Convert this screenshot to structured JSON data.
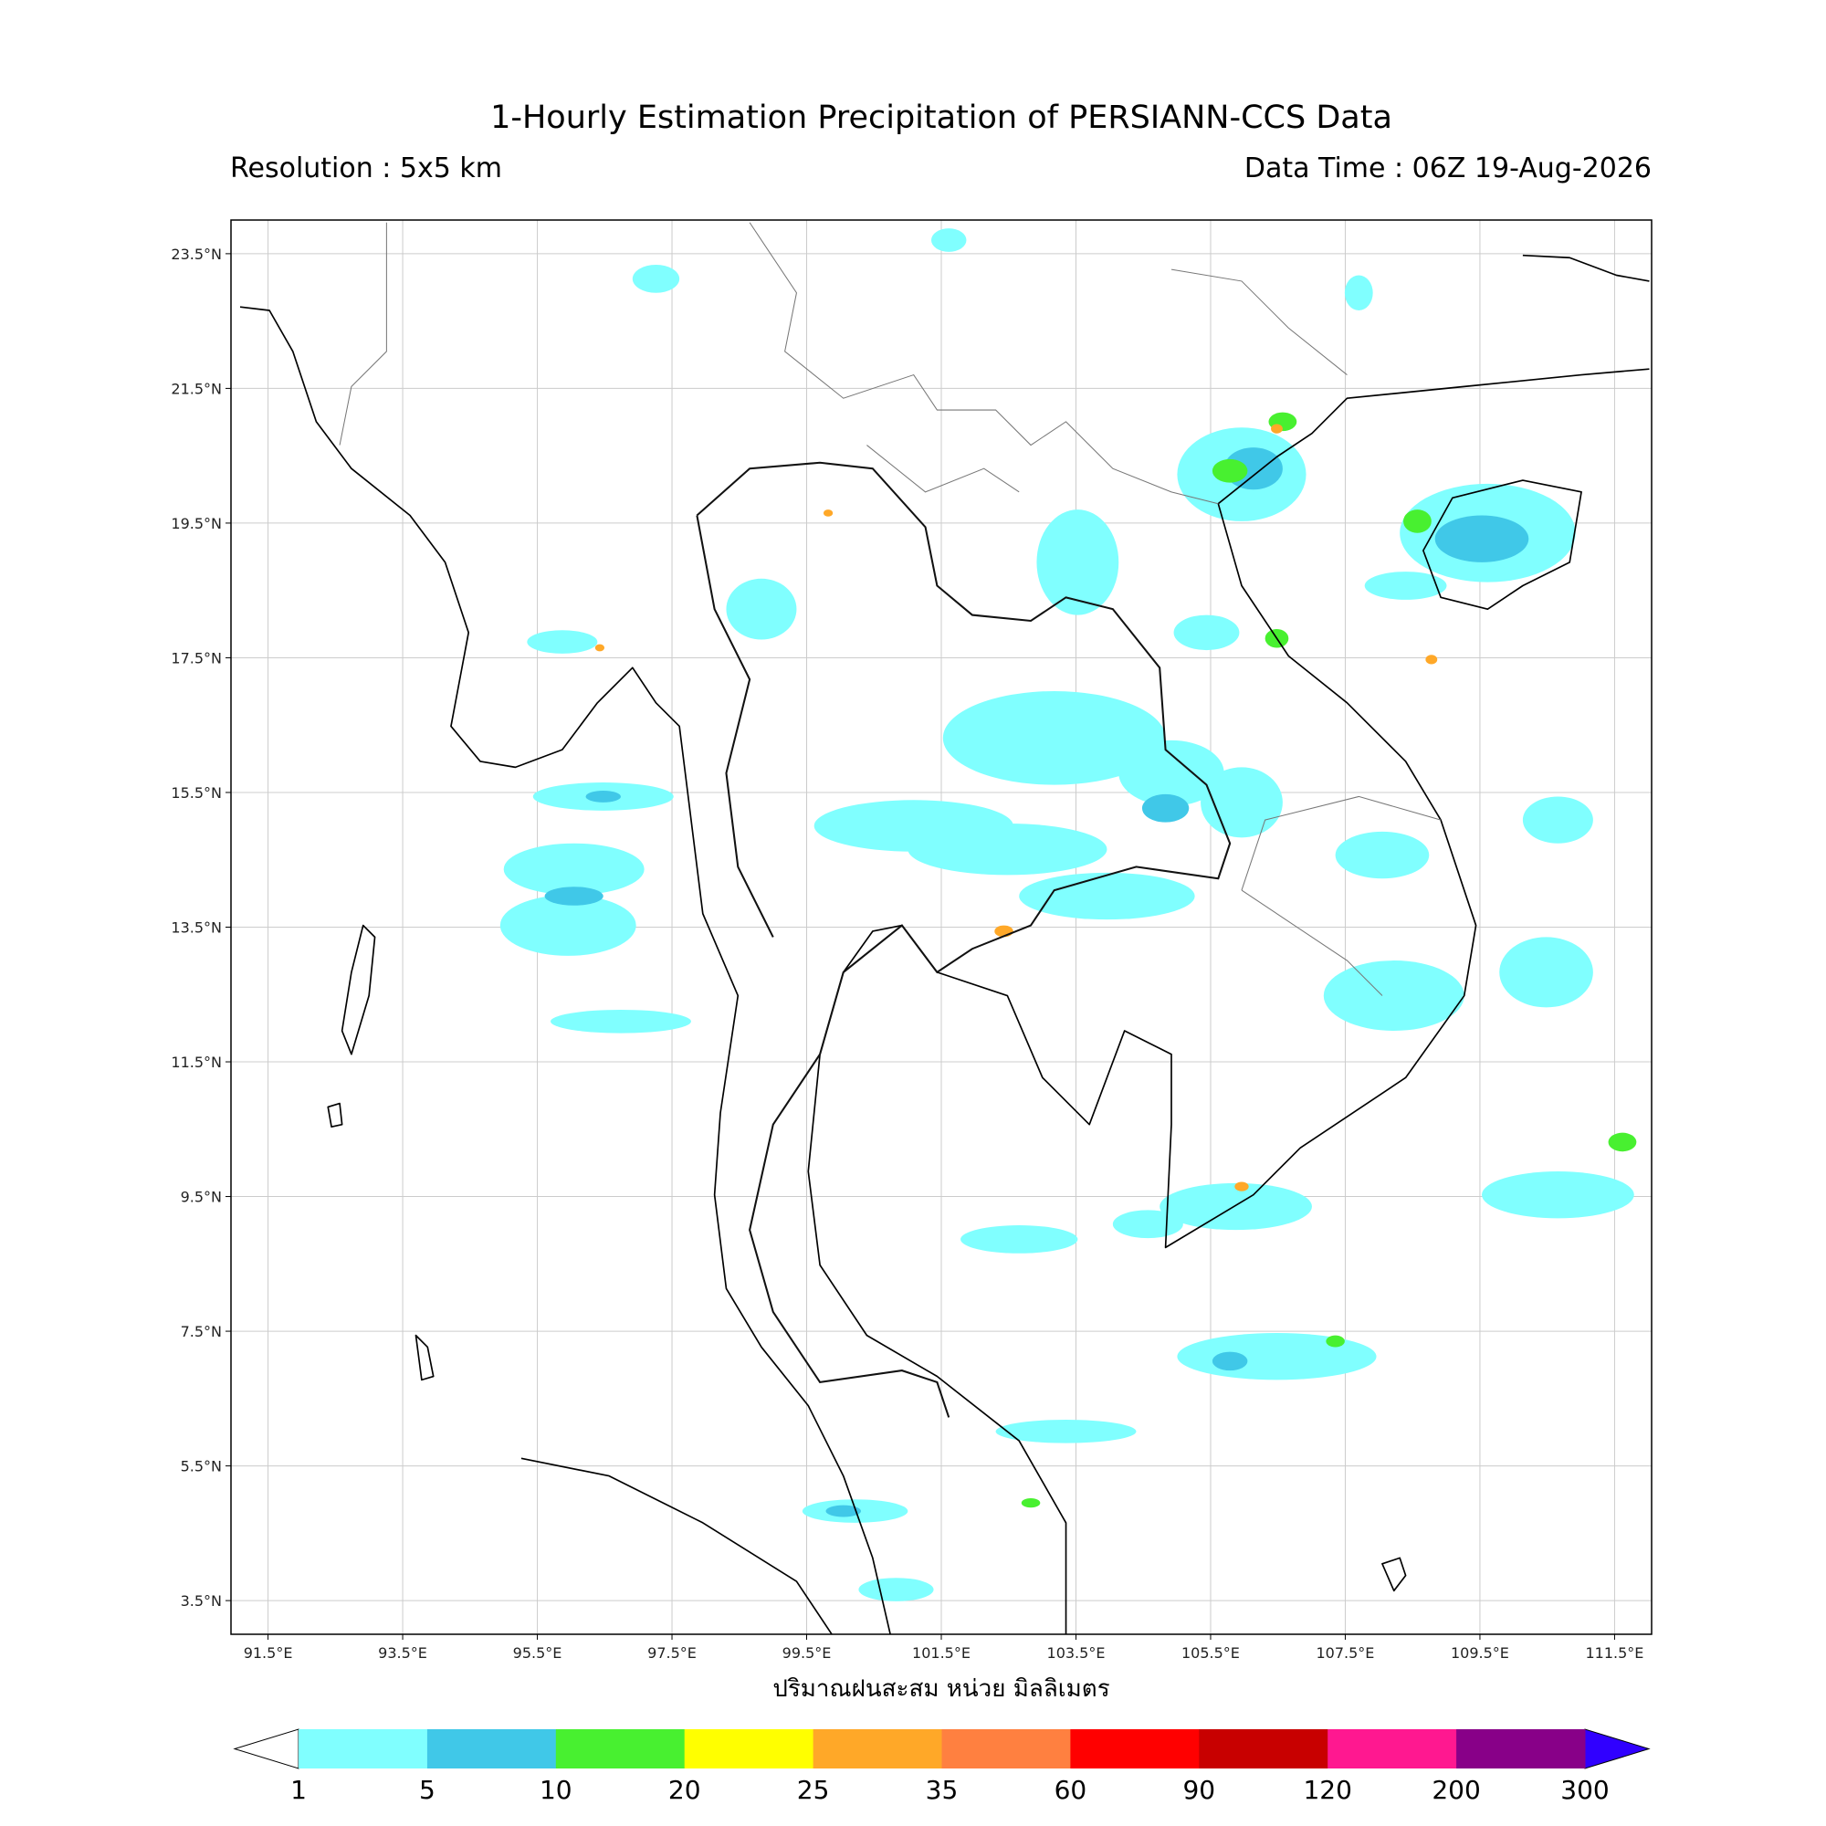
{
  "title": "1-Hourly Estimation Precipitation of PERSIANN-CCS Data",
  "subtitle_left": "Resolution : 5x5 km",
  "subtitle_right": "Data Time : 06Z 19-Aug-2026",
  "map": {
    "xlim": [
      90.95,
      112.05
    ],
    "ylim": [
      3.0,
      24.0
    ],
    "xticks": [
      {
        "value": 91.5,
        "label": "91.5°E"
      },
      {
        "value": 93.5,
        "label": "93.5°E"
      },
      {
        "value": 95.5,
        "label": "95.5°E"
      },
      {
        "value": 97.5,
        "label": "97.5°E"
      },
      {
        "value": 99.5,
        "label": "99.5°E"
      },
      {
        "value": 101.5,
        "label": "101.5°E"
      },
      {
        "value": 103.5,
        "label": "103.5°E"
      },
      {
        "value": 105.5,
        "label": "105.5°E"
      },
      {
        "value": 107.5,
        "label": "107.5°E"
      },
      {
        "value": 109.5,
        "label": "109.5°E"
      },
      {
        "value": 111.5,
        "label": "111.5°E"
      }
    ],
    "yticks": [
      {
        "value": 23.5,
        "label": "23.5°N"
      },
      {
        "value": 21.5,
        "label": "21.5°N"
      },
      {
        "value": 19.5,
        "label": "19.5°N"
      },
      {
        "value": 17.5,
        "label": "17.5°N"
      },
      {
        "value": 15.5,
        "label": "15.5°N"
      },
      {
        "value": 13.5,
        "label": "13.5°N"
      },
      {
        "value": 11.5,
        "label": "11.5°N"
      },
      {
        "value": 9.5,
        "label": "9.5°N"
      },
      {
        "value": 7.5,
        "label": "7.5°N"
      },
      {
        "value": 5.5,
        "label": "5.5°N"
      },
      {
        "value": 3.5,
        "label": "3.5°N"
      }
    ],
    "grid": true,
    "xlabel": "ปริมาณฝนสะสม หน่วย มิลลิเมตร"
  },
  "colorbar": {
    "levels": [
      1,
      5,
      10,
      20,
      25,
      35,
      60,
      90,
      120,
      200,
      300
    ],
    "colors": [
      "#80ffff",
      "#40c8e8",
      "#48f030",
      "#ffff00",
      "#ffa828",
      "#ff8040",
      "#ff0000",
      "#c80000",
      "#ff1890",
      "#880088"
    ],
    "under_color": "#ffffff",
    "over_color": "#3000ff"
  }
}
